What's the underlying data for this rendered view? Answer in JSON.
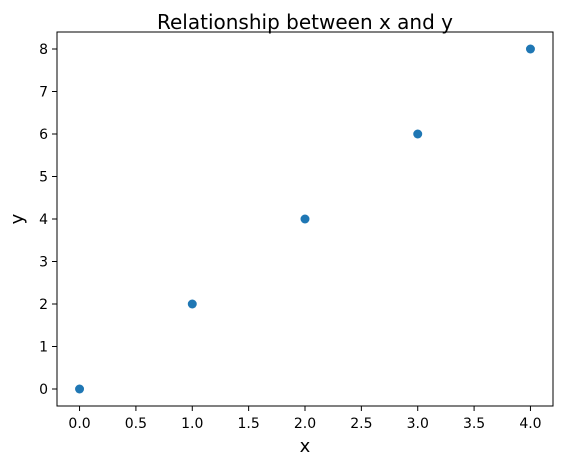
{
  "chart_data": {
    "type": "scatter",
    "title": "Relationship between x and y",
    "xlabel": "x",
    "ylabel": "y",
    "x": [
      0,
      1,
      2,
      3,
      4
    ],
    "y": [
      0,
      2,
      4,
      6,
      8
    ],
    "xlim": [
      -0.2,
      4.2
    ],
    "ylim": [
      -0.4,
      8.4
    ],
    "xticks": [
      0.0,
      0.5,
      1.0,
      1.5,
      2.0,
      2.5,
      3.0,
      3.5,
      4.0
    ],
    "xtick_labels": [
      "0.0",
      "0.5",
      "1.0",
      "1.5",
      "2.0",
      "2.5",
      "3.0",
      "3.5",
      "4.0"
    ],
    "yticks": [
      0,
      1,
      2,
      3,
      4,
      5,
      6,
      7,
      8
    ],
    "ytick_labels": [
      "0",
      "1",
      "2",
      "3",
      "4",
      "5",
      "6",
      "7",
      "8"
    ],
    "grid": false,
    "legend": "none",
    "point_color": "#1f77b4"
  }
}
